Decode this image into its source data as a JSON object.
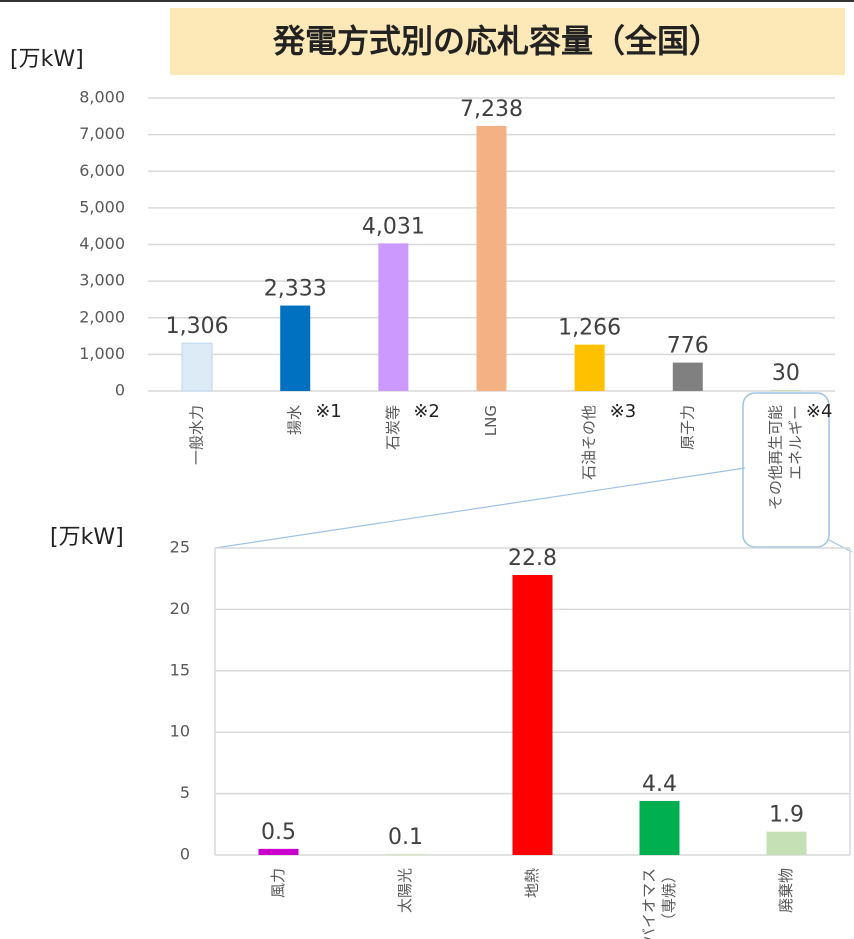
{
  "chart_data": [
    {
      "type": "bar",
      "title": "発電方式別の応札容量（全国）",
      "y_label": "[万kW]",
      "categories": [
        [
          "一般水力"
        ],
        [
          "揚水"
        ],
        [
          "石炭等"
        ],
        [
          "LNG"
        ],
        [
          "石油その他"
        ],
        [
          "原子力"
        ],
        [
          "その他再生可能",
          "エネルギー"
        ]
      ],
      "values": [
        1306,
        2333,
        4031,
        7238,
        1266,
        776,
        30
      ],
      "value_labels": [
        "1,306",
        "2,333",
        "4,031",
        "7,238",
        "1,266",
        "776",
        "30"
      ],
      "colors": [
        "#ddebf7",
        "#0070c0",
        "#cc99ff",
        "#f4b183",
        "#ffc000",
        "#808080",
        "#c5e0b4"
      ],
      "annotations": [
        "※1",
        "※2",
        "※3",
        "※4"
      ],
      "ylim": [
        0,
        8000
      ],
      "yticks": [
        0,
        {
          "value": 1000,
          "label": "1,000"
        },
        {
          "value": 2000,
          "label": "2,000"
        },
        {
          "value": 3000,
          "label": "3,000"
        },
        {
          "value": 4000,
          "label": "4,000"
        },
        {
          "value": 5000,
          "label": "5,000"
        },
        {
          "value": 6000,
          "label": "6,000"
        },
        {
          "value": 7000,
          "label": "7,000"
        },
        {
          "value": 8000,
          "label": "8,000"
        }
      ],
      "grid": true
    },
    {
      "type": "bar",
      "y_label": "[万kW]",
      "categories": [
        [
          "風力"
        ],
        [
          "太陽光"
        ],
        [
          "地熱"
        ],
        [
          "バイオマス",
          "（専焼）"
        ],
        [
          "廃棄物"
        ]
      ],
      "values": [
        0.5,
        0.1,
        22.8,
        4.4,
        1.9
      ],
      "colors": [
        "#cc00cc",
        "#d9e8c4",
        "#ff0000",
        "#00b050",
        "#c5e0b4"
      ],
      "ylim": [
        0,
        25
      ],
      "yticks": [
        0,
        5,
        10,
        15,
        20,
        25
      ],
      "grid": true
    }
  ]
}
